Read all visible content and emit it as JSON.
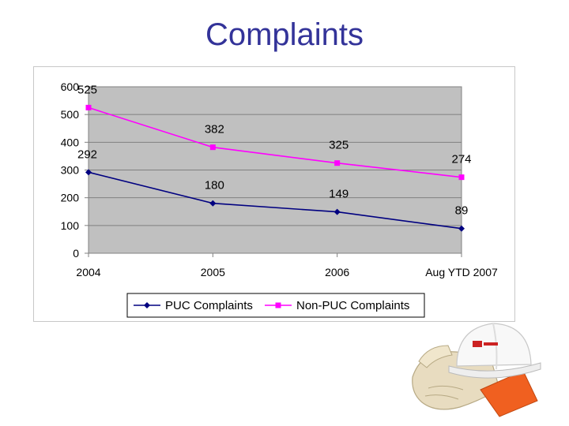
{
  "slide": {
    "title": "Complaints"
  },
  "chart_data": {
    "type": "line",
    "categories": [
      "2004",
      "2005",
      "2006",
      "Aug YTD 2007"
    ],
    "series": [
      {
        "name": "PUC Complaints",
        "values": [
          292,
          180,
          149,
          89
        ],
        "color": "#000080",
        "marker": "diamond"
      },
      {
        "name": "Non-PUC Complaints",
        "values": [
          525,
          382,
          325,
          274
        ],
        "color": "#ff00ff",
        "marker": "square"
      }
    ],
    "y_ticks": [
      "0",
      "100",
      "200",
      "300",
      "400",
      "500",
      "600"
    ],
    "ylim": [
      0,
      600
    ],
    "plot_background": "#c0c0c0",
    "grid": true,
    "legend_position": "bottom"
  },
  "illustration": {
    "description_icon": "hard-hat-and-gloves-icon"
  }
}
